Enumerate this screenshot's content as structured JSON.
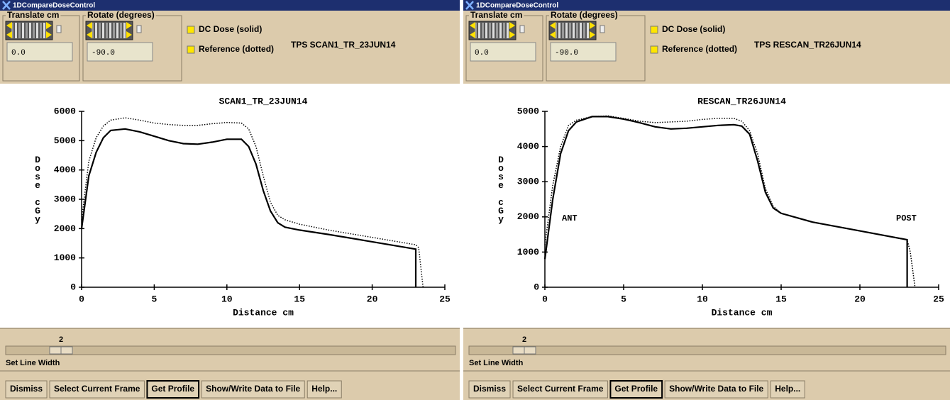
{
  "windows": [
    {
      "title": "1DCompareDoseControl",
      "translate_label": "Translate cm",
      "rotate_label": "Rotate (degrees)",
      "translate_value": "0.0",
      "rotate_value": "-90.0",
      "tps_label": "TPS SCAN1_TR_23JUN14",
      "line_width": 2,
      "line_width_label": "Set Line Width",
      "buttons": [
        "Dismiss",
        "Select Current Frame",
        "Get Profile",
        "Show/Write Data to File",
        "Help..."
      ],
      "chart": {
        "type": "line",
        "title": "SCAN1_TR_23JUN14",
        "xlabel": "Distance cm",
        "ylabel": "Dose cGy",
        "xlim": [
          0,
          25
        ],
        "ylim": [
          0,
          6000
        ],
        "xticks": [
          0,
          5,
          10,
          15,
          20,
          25
        ],
        "yticks": [
          0,
          1000,
          2000,
          3000,
          4000,
          5000,
          6000
        ],
        "annotations": [],
        "series": [
          {
            "name": "DC Dose (solid)",
            "color": "#000000",
            "dash": "solid",
            "x": [
              0,
              0.5,
              1,
              1.5,
              2,
              3,
              4,
              5,
              6,
              7,
              8,
              9,
              10,
              11,
              11.5,
              12,
              12.5,
              13,
              13.5,
              14,
              15,
              17,
              20,
              23,
              23
            ],
            "values": [
              2000,
              3800,
              4600,
              5100,
              5350,
              5400,
              5300,
              5150,
              5000,
              4900,
              4880,
              4950,
              5050,
              5050,
              4800,
              4200,
              3300,
              2600,
              2200,
              2050,
              1950,
              1800,
              1550,
              1300,
              0
            ]
          },
          {
            "name": "Reference (dotted)",
            "color": "#000000",
            "dash": "dotted",
            "x": [
              0,
              0.5,
              1,
              1.5,
              2,
              3,
              4,
              5,
              6,
              7,
              8,
              9,
              10,
              11,
              11.5,
              12,
              12.5,
              13,
              13.5,
              14,
              15,
              17,
              20,
              23,
              23.2,
              23.5
            ],
            "values": [
              2300,
              4300,
              5100,
              5500,
              5700,
              5780,
              5700,
              5600,
              5550,
              5520,
              5520,
              5580,
              5620,
              5600,
              5400,
              4800,
              3800,
              2900,
              2450,
              2300,
              2150,
              1950,
              1700,
              1450,
              1350,
              0
            ]
          }
        ]
      }
    },
    {
      "title": "1DCompareDoseControl",
      "translate_label": "Translate cm",
      "rotate_label": "Rotate (degrees)",
      "translate_value": "0.0",
      "rotate_value": "-90.0",
      "tps_label": "TPS RESCAN_TR26JUN14",
      "line_width": 2,
      "line_width_label": "Set Line Width",
      "buttons": [
        "Dismiss",
        "Select Current Frame",
        "Get Profile",
        "Show/Write Data to File",
        "Help..."
      ],
      "chart": {
        "type": "line",
        "title": "RESCAN_TR26JUN14",
        "xlabel": "Distance cm",
        "ylabel": "Dose cGy",
        "xlim": [
          0,
          25
        ],
        "ylim": [
          0,
          5000
        ],
        "xticks": [
          0,
          5,
          10,
          15,
          20,
          25
        ],
        "yticks": [
          0,
          1000,
          2000,
          3000,
          4000,
          5000
        ],
        "annotations": [
          "ANT",
          "POST"
        ],
        "series": [
          {
            "name": "DC Dose (solid)",
            "color": "#000000",
            "dash": "solid",
            "x": [
              0,
              0.5,
              1,
              1.5,
              2,
              3,
              4,
              5,
              6,
              7,
              8,
              9,
              10,
              11,
              12,
              12.5,
              13,
              13.5,
              14,
              14.5,
              15,
              17,
              20,
              23,
              23
            ],
            "values": [
              800,
              2500,
              3800,
              4450,
              4700,
              4850,
              4850,
              4780,
              4680,
              4560,
              4500,
              4520,
              4560,
              4600,
              4620,
              4580,
              4350,
              3600,
              2700,
              2250,
              2100,
              1850,
              1600,
              1350,
              0
            ]
          },
          {
            "name": "Reference (dotted)",
            "color": "#000000",
            "dash": "dotted",
            "x": [
              0,
              0.5,
              1,
              1.5,
              2,
              3,
              4,
              5,
              6,
              7,
              8,
              9,
              10,
              11,
              12,
              12.5,
              13,
              13.5,
              14,
              14.5,
              15,
              17,
              20,
              23,
              23.2,
              23.5
            ],
            "values": [
              1200,
              2900,
              4000,
              4600,
              4750,
              4850,
              4870,
              4800,
              4720,
              4680,
              4700,
              4720,
              4770,
              4800,
              4800,
              4720,
              4450,
              3800,
              2800,
              2300,
              2100,
              1850,
              1600,
              1350,
              1000,
              0
            ]
          }
        ]
      }
    }
  ]
}
